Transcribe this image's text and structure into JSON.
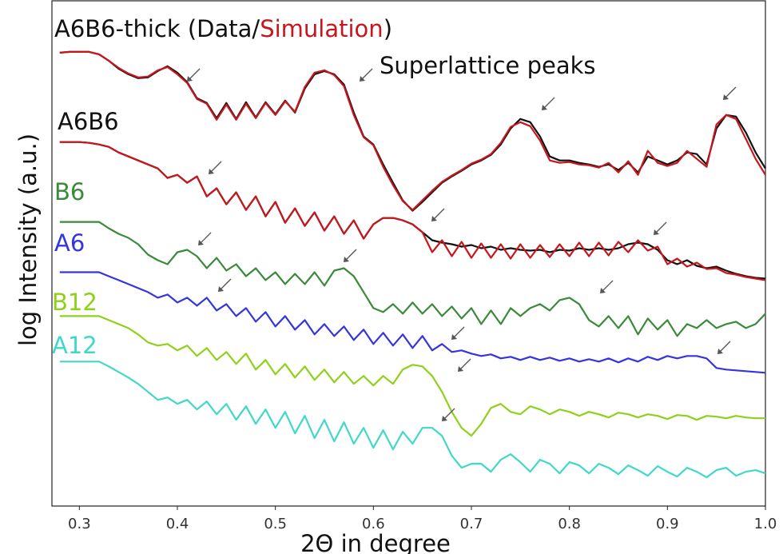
{
  "chart_data": {
    "type": "line",
    "title_parts": [
      {
        "text": "A6B6-thick (Data/",
        "color": "#111111"
      },
      {
        "text": "Simulation",
        "color": "#c8161d"
      },
      {
        "text": ")",
        "color": "#111111"
      }
    ],
    "annotation": "Superlattice peaks",
    "x_label": "2Θ in degree",
    "y_label": "log Intensity (a.u.)",
    "xlim": [
      0.272,
      1.0
    ],
    "ylim": [
      0,
      633
    ],
    "xticks": [
      0.3,
      0.4,
      0.5,
      0.6,
      0.7,
      0.8,
      0.9,
      {
        "value": 1,
        "label": "1.0"
      }
    ],
    "x": [
      0.28,
      0.29,
      0.3,
      0.31,
      0.32,
      0.33,
      0.34,
      0.35,
      0.36,
      0.37,
      0.38,
      0.39,
      0.4,
      0.41,
      0.42,
      0.43,
      0.44,
      0.45,
      0.46,
      0.47,
      0.48,
      0.49,
      0.5,
      0.51,
      0.52,
      0.53,
      0.54,
      0.55,
      0.56,
      0.57,
      0.58,
      0.59,
      0.6,
      0.61,
      0.62,
      0.63,
      0.64,
      0.65,
      0.66,
      0.67,
      0.68,
      0.69,
      0.7,
      0.71,
      0.72,
      0.73,
      0.74,
      0.75,
      0.76,
      0.77,
      0.78,
      0.79,
      0.8,
      0.81,
      0.82,
      0.83,
      0.84,
      0.85,
      0.86,
      0.87,
      0.88,
      0.89,
      0.9,
      0.91,
      0.92,
      0.93,
      0.94,
      0.95,
      0.96,
      0.97,
      0.98,
      0.99,
      1
    ],
    "series": [
      {
        "color": "#111111",
        "values": [
          568,
          569,
          569,
          569,
          566,
          558,
          548,
          541,
          536,
          537,
          545,
          551,
          543,
          531,
          511,
          505,
          486,
          505,
          485,
          506,
          487,
          506,
          491,
          508,
          493,
          523,
          541,
          545,
          541,
          528,
          493,
          463,
          453,
          428,
          405,
          383,
          370,
          381,
          393,
          405,
          413,
          420,
          428,
          433,
          440,
          453,
          473,
          485,
          481,
          463,
          438,
          433,
          433,
          430,
          428,
          425,
          428,
          421,
          430,
          418,
          438,
          433,
          428,
          433,
          443,
          441,
          428,
          473,
          490,
          488,
          468,
          443,
          423
        ]
      },
      {
        "color": "#c8161d",
        "values": [
          568,
          569,
          569,
          569,
          566,
          558,
          549,
          542,
          537,
          538,
          546,
          550,
          541,
          530,
          510,
          504,
          484,
          503,
          484,
          504,
          486,
          505,
          490,
          507,
          494,
          525,
          543,
          546,
          540,
          526,
          490,
          462,
          452,
          425,
          402,
          382,
          371,
          383,
          395,
          406,
          414,
          421,
          429,
          434,
          441,
          455,
          475,
          481,
          476,
          458,
          433,
          430,
          431,
          428,
          427,
          424,
          430,
          418,
          432,
          415,
          445,
          430,
          426,
          430,
          445,
          435,
          425,
          478,
          490,
          485,
          460,
          435,
          415
        ]
      },
      {
        "name": "A6B6",
        "color": "#111111",
        "values": [
          456,
          456,
          456,
          455,
          453,
          450,
          443,
          438,
          433,
          428,
          423,
          411,
          415,
          405,
          413,
          388,
          398,
          378,
          393,
          371,
          388,
          363,
          381,
          355,
          373,
          351,
          368,
          345,
          363,
          341,
          358,
          335,
          353,
          361,
          361,
          358,
          353,
          343,
          333,
          330,
          328,
          325,
          327,
          323,
          325,
          321,
          323,
          321,
          320,
          321,
          318,
          321,
          320,
          323,
          321,
          323,
          321,
          323,
          328,
          330,
          328,
          321,
          308,
          303,
          308,
          301,
          298,
          300,
          295,
          291,
          288,
          286,
          285
        ]
      },
      {
        "color": "#c8161d",
        "values": [
          456,
          456,
          456,
          455,
          453,
          450,
          443,
          438,
          433,
          428,
          423,
          411,
          415,
          405,
          413,
          388,
          398,
          378,
          393,
          371,
          388,
          363,
          381,
          355,
          373,
          351,
          368,
          345,
          363,
          341,
          358,
          335,
          353,
          361,
          361,
          358,
          353,
          343,
          318,
          333,
          313,
          331,
          311,
          329,
          311,
          328,
          310,
          328,
          311,
          327,
          312,
          328,
          313,
          330,
          313,
          330,
          314,
          331,
          318,
          333,
          320,
          325,
          303,
          310,
          300,
          305,
          297,
          298,
          292,
          290,
          287,
          285,
          283
        ]
      },
      {
        "name": "B6",
        "color": "#3a8a3a",
        "values": [
          356,
          356,
          356,
          356,
          356,
          348,
          341,
          336,
          328,
          315,
          308,
          303,
          318,
          321,
          313,
          298,
          311,
          295,
          303,
          288,
          298,
          283,
          293,
          278,
          291,
          278,
          293,
          276,
          295,
          298,
          288,
          268,
          248,
          243,
          253,
          241,
          255,
          241,
          253,
          238,
          250,
          235,
          248,
          228,
          245,
          228,
          248,
          238,
          248,
          253,
          245,
          258,
          261,
          253,
          233,
          225,
          238,
          223,
          238,
          215,
          235,
          221,
          233,
          213,
          228,
          223,
          233,
          223,
          228,
          231,
          223,
          228,
          241
        ]
      },
      {
        "name": "A6",
        "color": "#3535e0",
        "values": [
          293,
          293,
          293,
          293,
          293,
          288,
          283,
          278,
          273,
          268,
          261,
          265,
          255,
          261,
          251,
          261,
          245,
          253,
          238,
          248,
          231,
          243,
          225,
          238,
          221,
          233,
          215,
          228,
          213,
          225,
          208,
          221,
          203,
          217,
          201,
          215,
          198,
          213,
          195,
          203,
          193,
          195,
          191,
          188,
          190,
          185,
          187,
          183,
          187,
          183,
          186,
          182,
          185,
          181,
          184,
          181,
          185,
          180,
          185,
          181,
          187,
          183,
          188,
          185,
          188,
          188,
          185,
          173,
          171,
          170,
          169,
          168,
          167
        ]
      },
      {
        "name": "B12",
        "color": "#8fd11a",
        "values": [
          238,
          238,
          238,
          238,
          238,
          233,
          228,
          223,
          215,
          205,
          201,
          203,
          195,
          201,
          188,
          198,
          183,
          193,
          178,
          191,
          171,
          183,
          165,
          178,
          161,
          175,
          158,
          171,
          155,
          168,
          153,
          163,
          151,
          163,
          153,
          171,
          177,
          175,
          163,
          143,
          118,
          98,
          88,
          103,
          123,
          128,
          118,
          115,
          125,
          121,
          115,
          121,
          118,
          113,
          118,
          115,
          111,
          117,
          115,
          111,
          115,
          113,
          109,
          114,
          113,
          108,
          113,
          112,
          110,
          113,
          111,
          110,
          110
        ]
      },
      {
        "name": "A12",
        "color": "#40d8c8",
        "values": [
          181,
          181,
          181,
          181,
          181,
          175,
          168,
          161,
          153,
          143,
          133,
          136,
          128,
          133,
          121,
          131,
          115,
          128,
          108,
          125,
          103,
          121,
          98,
          118,
          91,
          113,
          85,
          108,
          81,
          105,
          78,
          98,
          73,
          95,
          71,
          93,
          78,
          98,
          98,
          88,
          63,
          48,
          53,
          53,
          43,
          58,
          65,
          55,
          43,
          58,
          53,
          41,
          55,
          51,
          41,
          53,
          48,
          40,
          51,
          45,
          38,
          50,
          43,
          37,
          48,
          43,
          36,
          45,
          48,
          38,
          43,
          45,
          41
        ]
      }
    ]
  }
}
